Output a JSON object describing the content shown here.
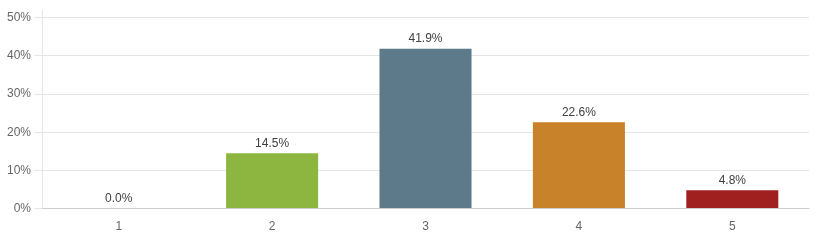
{
  "chart_data": {
    "type": "bar",
    "categories": [
      "1",
      "2",
      "3",
      "4",
      "5"
    ],
    "values": [
      0.0,
      14.5,
      41.9,
      22.6,
      4.8
    ],
    "value_labels": [
      "0.0%",
      "14.5%",
      "41.9%",
      "22.6%",
      "4.8%"
    ],
    "data_labels": true,
    "colors": [
      "#8db641",
      "#8db641",
      "#5d7a8a",
      "#c8822a",
      "#a02020"
    ],
    "ylim": [
      0,
      52
    ],
    "yticks": [
      {
        "value": 0,
        "label": "0%"
      },
      {
        "value": 10,
        "label": "10%"
      },
      {
        "value": 20,
        "label": "20%"
      },
      {
        "value": 30,
        "label": "30%"
      },
      {
        "value": 40,
        "label": "40%"
      },
      {
        "value": 50,
        "label": "50%"
      }
    ],
    "grid": true
  }
}
